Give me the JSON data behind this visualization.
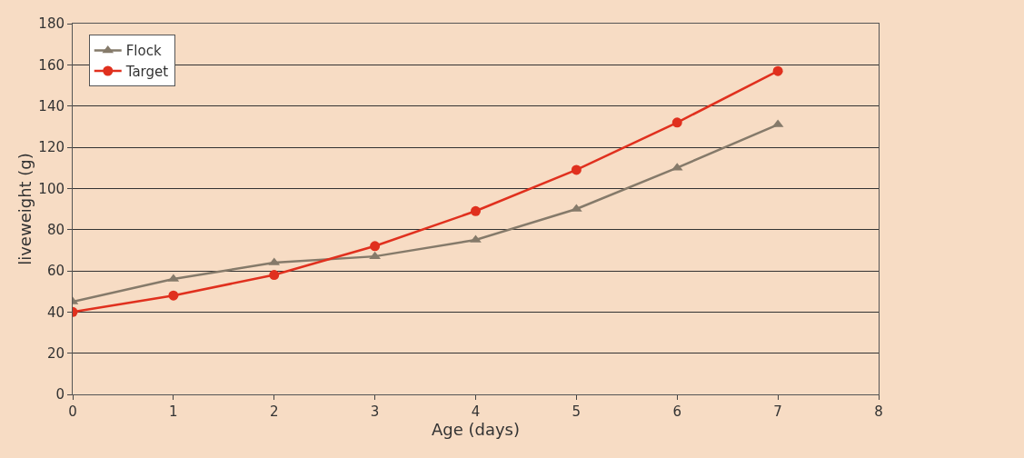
{
  "chart_data": {
    "type": "line",
    "xlabel": "Age (days)",
    "ylabel": "liveweight (g)",
    "x": [
      0,
      1,
      2,
      3,
      4,
      5,
      6,
      7
    ],
    "series": [
      {
        "name": "Flock",
        "color": "#857a6a",
        "marker": "triangle",
        "values": [
          45,
          56,
          64,
          67,
          75,
          90,
          110,
          131
        ]
      },
      {
        "name": "Target",
        "color": "#e0301e",
        "marker": "circle",
        "values": [
          40,
          48,
          58,
          72,
          89,
          109,
          132,
          157
        ]
      }
    ],
    "xlim": [
      0,
      8
    ],
    "xticks": [
      0,
      1,
      2,
      3,
      4,
      5,
      6,
      7,
      8
    ],
    "ylim": [
      0,
      180
    ],
    "yticks": [
      0,
      20,
      40,
      60,
      80,
      100,
      120,
      140,
      160,
      180
    ],
    "grid": "y",
    "legend": "top left"
  }
}
